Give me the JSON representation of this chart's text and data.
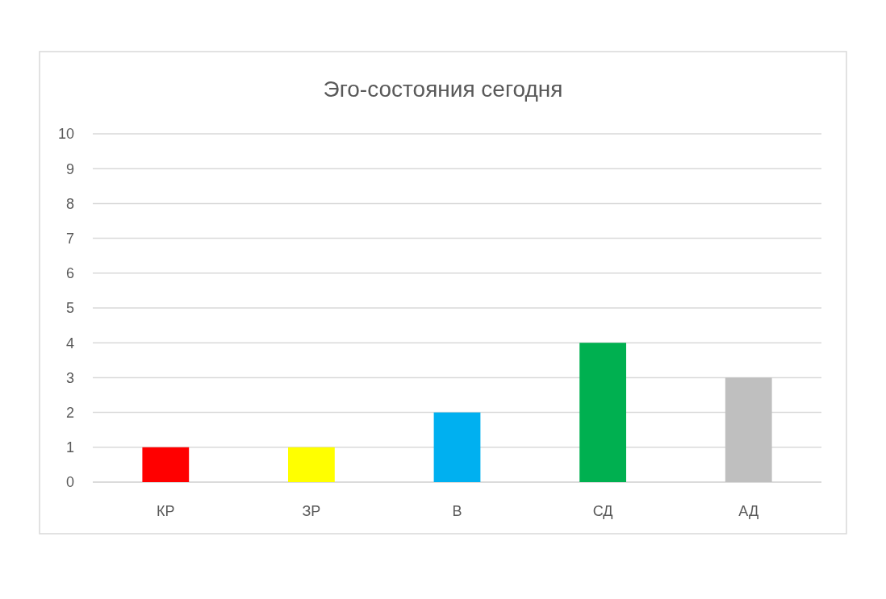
{
  "chart_data": {
    "type": "bar",
    "title": "Эго-состояния сегодня",
    "categories": [
      "КР",
      "ЗР",
      "В",
      "СД",
      "АД"
    ],
    "values": [
      1,
      1,
      2,
      4,
      3
    ],
    "colors": [
      "#ff0000",
      "#ffff00",
      "#00b0f0",
      "#00b050",
      "#bfbfbf"
    ],
    "ylim": [
      0,
      10
    ],
    "yticks": [
      0,
      1,
      2,
      3,
      4,
      5,
      6,
      7,
      8,
      9,
      10
    ],
    "grid": "y"
  }
}
